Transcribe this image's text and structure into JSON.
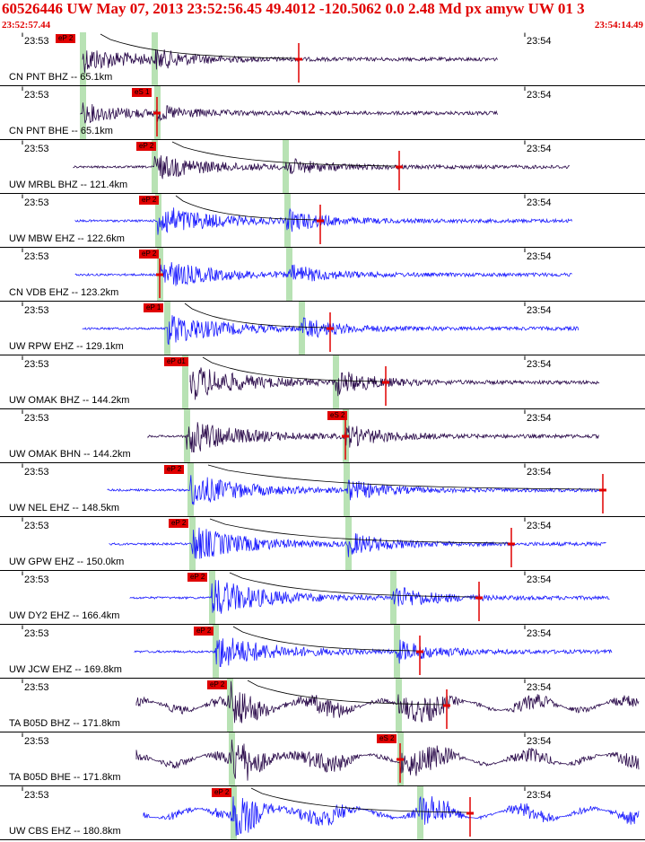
{
  "header": {
    "title": "60526446 UW May 07, 2013 23:52:56.45   49.4012 -120.5062  0.0 2.48 Md px amyw UW 01   3",
    "start_time": "23:52:57.44",
    "end_time": "23:54:14.49"
  },
  "time_ticks": [
    "23:53",
    "23:54"
  ],
  "colors": {
    "header_text": "#e00000",
    "pick": "#e00000",
    "trace_dark": "#2a0a4a",
    "trace_blue": "#1a1aff",
    "phase_band": "#b8e2b4",
    "grid": "#000000"
  },
  "tracks": [
    {
      "label": "CN PNT BHZ -- 65.1km",
      "pick": "eP 2",
      "color": "dark"
    },
    {
      "label": "CN PNT BHE -- 65.1km",
      "pick": "eS 1",
      "color": "dark"
    },
    {
      "label": "UW MRBL BHZ -- 121.4km",
      "pick": "eP 2",
      "color": "dark"
    },
    {
      "label": "UW MBW EHZ -- 122.6km",
      "pick": "eP 2",
      "color": "blue"
    },
    {
      "label": "CN VDB EHZ -- 123.2km",
      "pick": "eP 2",
      "color": "blue"
    },
    {
      "label": "UW RPW EHZ -- 129.1km",
      "pick": "eP 1",
      "color": "blue"
    },
    {
      "label": "UW OMAK BHZ -- 144.2km",
      "pick": "eP d1",
      "color": "dark"
    },
    {
      "label": "UW OMAK BHN -- 144.2km",
      "pick": "eS 2",
      "color": "dark"
    },
    {
      "label": "UW NEL EHZ -- 148.5km",
      "pick": "eP 2",
      "color": "blue"
    },
    {
      "label": "UW GPW EHZ -- 150.0km",
      "pick": "eP 2",
      "color": "blue"
    },
    {
      "label": "UW DY2 EHZ -- 166.4km",
      "pick": "eP 2",
      "color": "blue"
    },
    {
      "label": "UW JCW EHZ -- 169.8km",
      "pick": "eP 2",
      "color": "blue"
    },
    {
      "label": "TA B05D BHZ -- 171.8km",
      "pick": "eP 2",
      "color": "dark"
    },
    {
      "label": "TA B05D BHE -- 171.8km",
      "pick": "eS 2",
      "color": "dark"
    },
    {
      "label": "UW CBS EHZ -- 180.8km",
      "pick": "eP 2",
      "color": "blue"
    }
  ]
}
